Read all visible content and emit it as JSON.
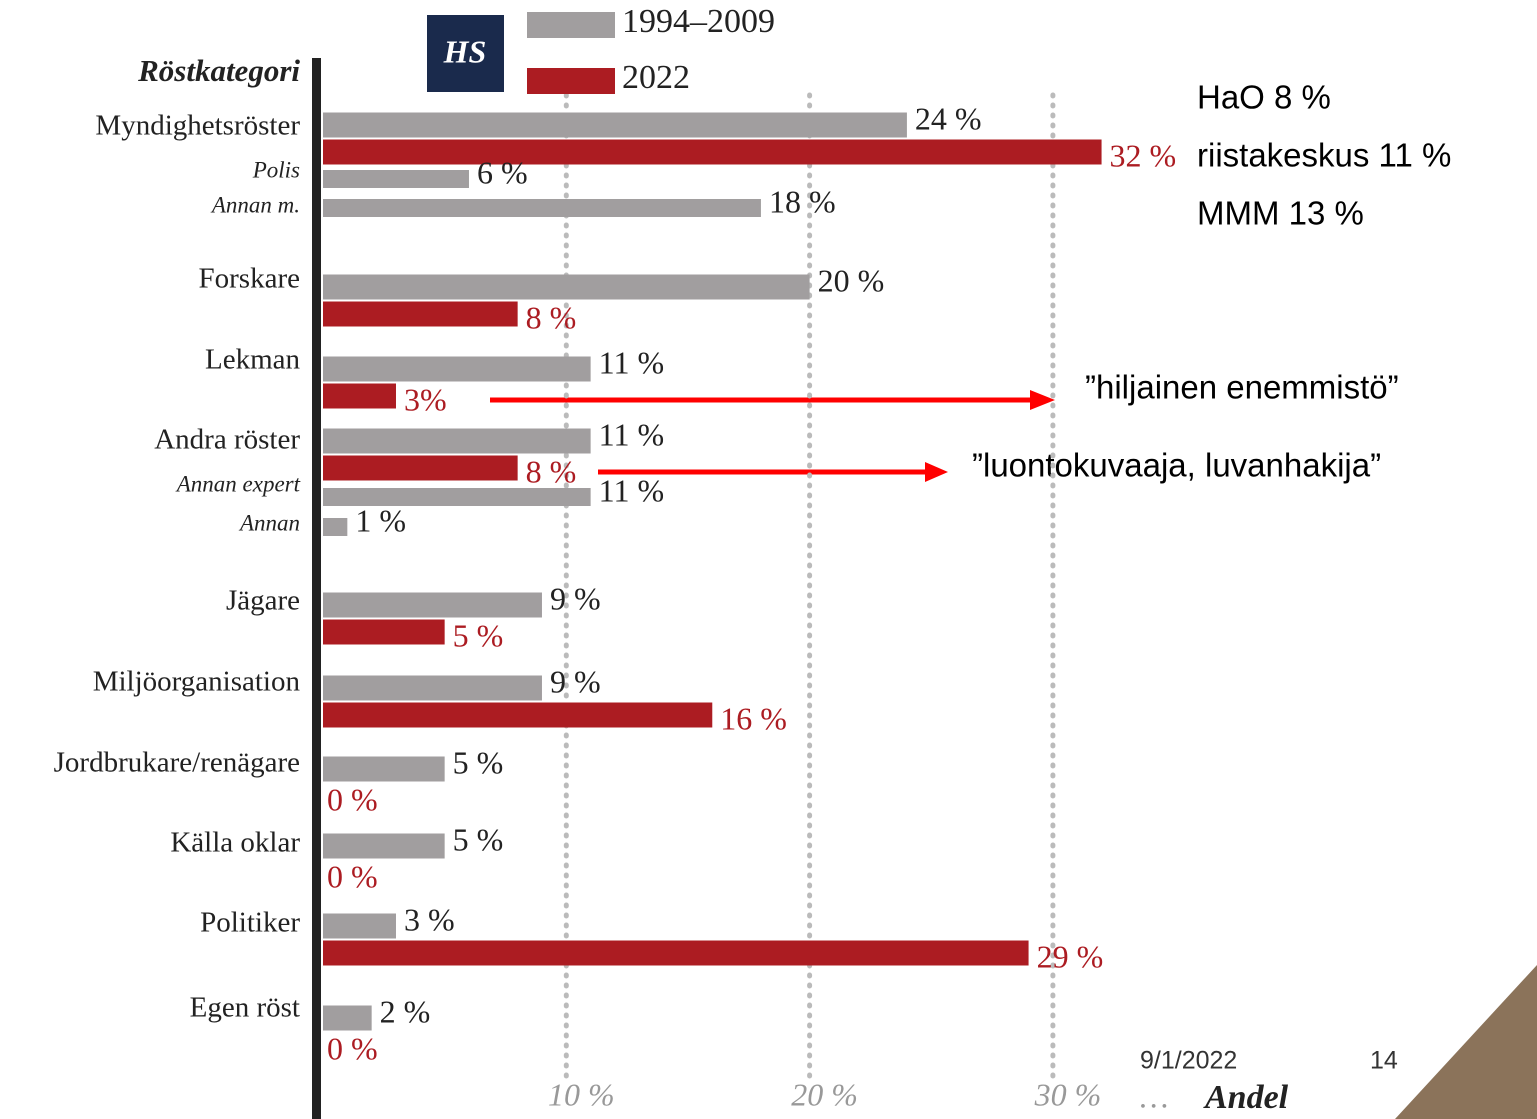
{
  "chart_data": {
    "type": "bar",
    "orientation": "horizontal",
    "title": "Röstkategori",
    "x_label": "Andel",
    "x_more": "…",
    "logo": "HS",
    "categories": [
      "Myndighetsröster",
      "Polis",
      "Annan m.",
      "Forskare",
      "Lekman",
      "Andra röster",
      "Annan expert",
      "Annan",
      "Jägare",
      "Miljöorganisation",
      "Jordbrukare/renägare",
      "Källa oklar",
      "Politiker",
      "Egen röst"
    ],
    "series": [
      {
        "name": "1994–2009",
        "color": "#a19e9f",
        "values": [
          24,
          6,
          18,
          20,
          11,
          11,
          11,
          1,
          9,
          9,
          5,
          5,
          3,
          2
        ],
        "value_labels": [
          "24 %",
          "6 %",
          "18 %",
          "20 %",
          "11 %",
          "11 %",
          "11 %",
          "1 %",
          "9 %",
          "9 %",
          "5 %",
          "5 %",
          "3 %",
          "2 %"
        ]
      },
      {
        "name": "2022",
        "color": "#ac1c22",
        "values": [
          32,
          null,
          null,
          8,
          3,
          8,
          null,
          null,
          5,
          16,
          0,
          0,
          29,
          0
        ],
        "value_labels": [
          "32 %",
          null,
          null,
          "8 %",
          "3%",
          "8 %",
          null,
          null,
          "5 %",
          "16 %",
          "0 %",
          "0 %",
          "29 %",
          "0 %"
        ]
      }
    ],
    "xlim": [
      0,
      34
    ],
    "xticks": [
      {
        "value": 10,
        "label": "10 %"
      },
      {
        "value": 20,
        "label": "20 %"
      },
      {
        "value": 30,
        "label": "30 %"
      }
    ],
    "grid": true,
    "annotations": [
      "HaO 8 %",
      "riistakeskus 11 %",
      "MMM 13 %",
      "”hiljainen enemmistö”",
      "”luontokuvaaja, luvanhakija”"
    ],
    "footer": {
      "date": "9/1/2022",
      "page": "14"
    }
  }
}
